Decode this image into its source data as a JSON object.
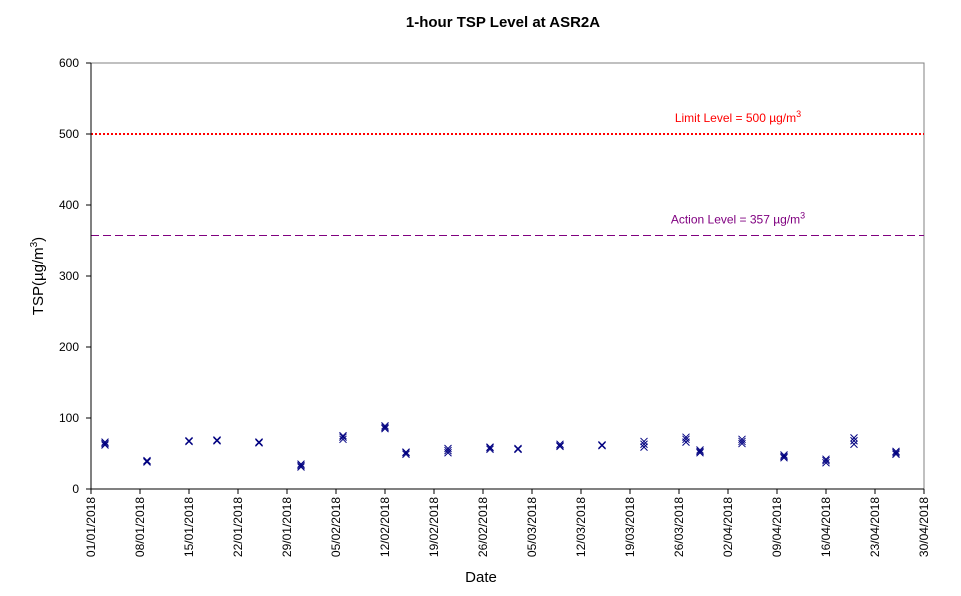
{
  "chart_data": {
    "type": "scatter",
    "title": "1-hour TSP Level at ASR2A",
    "xlabel": "Date",
    "ylabel_main": "TSP(µg/m",
    "ylabel_sup": "3",
    "ylabel_end": ")",
    "ylim": [
      0,
      600
    ],
    "yticks": [
      0,
      100,
      200,
      300,
      400,
      500,
      600
    ],
    "xlim": [
      "01/01/2018",
      "30/04/2018"
    ],
    "xticks": [
      "01/01/2018",
      "08/01/2018",
      "15/01/2018",
      "22/01/2018",
      "29/01/2018",
      "05/02/2018",
      "12/02/2018",
      "19/02/2018",
      "26/02/2018",
      "05/03/2018",
      "12/03/2018",
      "19/03/2018",
      "26/03/2018",
      "02/04/2018",
      "09/04/2018",
      "16/04/2018",
      "23/04/2018",
      "30/04/2018"
    ],
    "grid": false,
    "marker_color": "#000080",
    "reference_lines": [
      {
        "name": "limit",
        "label": "Limit Level = 500 µg/m",
        "label_sup": "3",
        "value": 500,
        "color": "#ff0000",
        "style": "dotted"
      },
      {
        "name": "action",
        "label": "Action Level = 357 µg/m",
        "label_sup": "3",
        "value": 357,
        "color": "#800080",
        "style": "dashed"
      }
    ],
    "points": [
      {
        "date": "03/01/2018",
        "values": [
          62,
          64,
          66
        ]
      },
      {
        "date": "09/01/2018",
        "values": [
          38,
          39,
          40
        ]
      },
      {
        "date": "15/01/2018",
        "values": [
          67,
          68,
          67
        ]
      },
      {
        "date": "19/01/2018",
        "values": [
          68,
          69,
          68
        ]
      },
      {
        "date": "25/01/2018",
        "values": [
          65,
          66,
          66
        ]
      },
      {
        "date": "31/01/2018",
        "values": [
          31,
          33,
          35
        ]
      },
      {
        "date": "06/02/2018",
        "values": [
          70,
          73,
          75
        ]
      },
      {
        "date": "12/02/2018",
        "values": [
          85,
          87,
          89
        ]
      },
      {
        "date": "15/02/2018",
        "values": [
          49,
          51,
          52
        ]
      },
      {
        "date": "21/02/2018",
        "values": [
          51,
          54,
          57
        ]
      },
      {
        "date": "27/02/2018",
        "values": [
          56,
          58,
          59
        ]
      },
      {
        "date": "03/03/2018",
        "values": [
          56,
          56,
          57
        ]
      },
      {
        "date": "09/03/2018",
        "values": [
          60,
          61,
          63
        ]
      },
      {
        "date": "15/03/2018",
        "values": [
          61,
          62,
          62
        ]
      },
      {
        "date": "21/03/2018",
        "values": [
          59,
          63,
          67
        ]
      },
      {
        "date": "27/03/2018",
        "values": [
          66,
          70,
          73
        ]
      },
      {
        "date": "29/03/2018",
        "values": [
          51,
          53,
          55
        ]
      },
      {
        "date": "04/04/2018",
        "values": [
          64,
          67,
          70
        ]
      },
      {
        "date": "10/04/2018",
        "values": [
          44,
          46,
          48
        ]
      },
      {
        "date": "16/04/2018",
        "values": [
          37,
          40,
          42
        ]
      },
      {
        "date": "20/04/2018",
        "values": [
          63,
          68,
          72
        ]
      },
      {
        "date": "26/04/2018",
        "values": [
          49,
          51,
          53
        ]
      }
    ]
  }
}
